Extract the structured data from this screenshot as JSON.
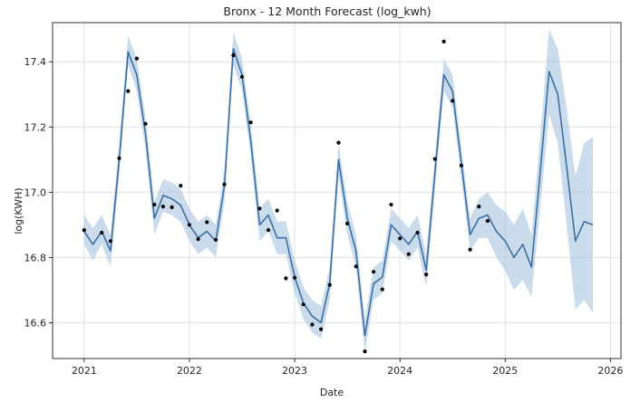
{
  "chart_data": {
    "type": "line",
    "title": "Bronx - 12 Month Forecast (log_kwh)",
    "xlabel": "Date",
    "ylabel": "log(KWH)",
    "x_ticks": [
      2021,
      2022,
      2023,
      2024,
      2025,
      2026
    ],
    "x_ticks_labels": [
      "2021",
      "2022",
      "2023",
      "2024",
      "2025",
      "2026"
    ],
    "y_ticks": [
      16.6,
      16.8,
      17.0,
      17.2,
      17.4
    ],
    "y_ticks_labels": [
      "16.6",
      "16.8",
      "17.0",
      "17.2",
      "17.4"
    ],
    "xlim": [
      2020.7,
      2026.1
    ],
    "ylim": [
      16.49,
      17.52
    ],
    "grid": true,
    "colors": {
      "forecast_line": "#3a6ea5",
      "uncertainty_band": "#9fbfdd",
      "actual_points": "#000000",
      "grid": "#e0e0e0"
    },
    "series": [
      {
        "name": "actual",
        "style": "points",
        "points": [
          {
            "x": 2021.0,
            "y": 16.884
          },
          {
            "x": 2021.167,
            "y": 16.876
          },
          {
            "x": 2021.25,
            "y": 16.85
          },
          {
            "x": 2021.333,
            "y": 17.104
          },
          {
            "x": 2021.417,
            "y": 17.31
          },
          {
            "x": 2021.5,
            "y": 17.41
          },
          {
            "x": 2021.583,
            "y": 17.21
          },
          {
            "x": 2021.667,
            "y": 16.962
          },
          {
            "x": 2021.75,
            "y": 16.956
          },
          {
            "x": 2021.833,
            "y": 16.954
          },
          {
            "x": 2021.917,
            "y": 17.02
          },
          {
            "x": 2022.0,
            "y": 16.9
          },
          {
            "x": 2022.083,
            "y": 16.856
          },
          {
            "x": 2022.167,
            "y": 16.908
          },
          {
            "x": 2022.25,
            "y": 16.854
          },
          {
            "x": 2022.333,
            "y": 17.024
          },
          {
            "x": 2022.417,
            "y": 17.42
          },
          {
            "x": 2022.5,
            "y": 17.354
          },
          {
            "x": 2022.583,
            "y": 17.214
          },
          {
            "x": 2022.667,
            "y": 16.95
          },
          {
            "x": 2022.75,
            "y": 16.884
          },
          {
            "x": 2022.833,
            "y": 16.944
          },
          {
            "x": 2022.917,
            "y": 16.736
          },
          {
            "x": 2023.0,
            "y": 16.738
          },
          {
            "x": 2023.083,
            "y": 16.656
          },
          {
            "x": 2023.167,
            "y": 16.594
          },
          {
            "x": 2023.25,
            "y": 16.58
          },
          {
            "x": 2023.333,
            "y": 16.716
          },
          {
            "x": 2023.417,
            "y": 17.152
          },
          {
            "x": 2023.5,
            "y": 16.904
          },
          {
            "x": 2023.583,
            "y": 16.772
          },
          {
            "x": 2023.667,
            "y": 16.512
          },
          {
            "x": 2023.75,
            "y": 16.756
          },
          {
            "x": 2023.833,
            "y": 16.702
          },
          {
            "x": 2023.917,
            "y": 16.962
          },
          {
            "x": 2024.0,
            "y": 16.858
          },
          {
            "x": 2024.083,
            "y": 16.81
          },
          {
            "x": 2024.167,
            "y": 16.876
          },
          {
            "x": 2024.25,
            "y": 16.748
          },
          {
            "x": 2024.333,
            "y": 17.102
          },
          {
            "x": 2024.417,
            "y": 17.462
          },
          {
            "x": 2024.5,
            "y": 17.28
          },
          {
            "x": 2024.583,
            "y": 17.082
          },
          {
            "x": 2024.667,
            "y": 16.824
          },
          {
            "x": 2024.75,
            "y": 16.956
          },
          {
            "x": 2024.833,
            "y": 16.912
          }
        ]
      },
      {
        "name": "forecast",
        "style": "line",
        "points": [
          {
            "x": 2021.0,
            "y": 16.88
          },
          {
            "x": 2021.083,
            "y": 16.84
          },
          {
            "x": 2021.167,
            "y": 16.88
          },
          {
            "x": 2021.25,
            "y": 16.82
          },
          {
            "x": 2021.333,
            "y": 17.1
          },
          {
            "x": 2021.417,
            "y": 17.43
          },
          {
            "x": 2021.5,
            "y": 17.36
          },
          {
            "x": 2021.583,
            "y": 17.18
          },
          {
            "x": 2021.667,
            "y": 16.92
          },
          {
            "x": 2021.75,
            "y": 16.99
          },
          {
            "x": 2021.833,
            "y": 16.98
          },
          {
            "x": 2021.917,
            "y": 16.96
          },
          {
            "x": 2022.0,
            "y": 16.9
          },
          {
            "x": 2022.083,
            "y": 16.86
          },
          {
            "x": 2022.167,
            "y": 16.88
          },
          {
            "x": 2022.25,
            "y": 16.85
          },
          {
            "x": 2022.333,
            "y": 17.02
          },
          {
            "x": 2022.417,
            "y": 17.44
          },
          {
            "x": 2022.5,
            "y": 17.36
          },
          {
            "x": 2022.583,
            "y": 17.16
          },
          {
            "x": 2022.667,
            "y": 16.9
          },
          {
            "x": 2022.75,
            "y": 16.93
          },
          {
            "x": 2022.833,
            "y": 16.86
          },
          {
            "x": 2022.917,
            "y": 16.86
          },
          {
            "x": 2023.0,
            "y": 16.74
          },
          {
            "x": 2023.083,
            "y": 16.66
          },
          {
            "x": 2023.167,
            "y": 16.62
          },
          {
            "x": 2023.25,
            "y": 16.6
          },
          {
            "x": 2023.333,
            "y": 16.72
          },
          {
            "x": 2023.417,
            "y": 17.1
          },
          {
            "x": 2023.5,
            "y": 16.92
          },
          {
            "x": 2023.583,
            "y": 16.82
          },
          {
            "x": 2023.667,
            "y": 16.56
          },
          {
            "x": 2023.75,
            "y": 16.72
          },
          {
            "x": 2023.833,
            "y": 16.74
          },
          {
            "x": 2023.917,
            "y": 16.9
          },
          {
            "x": 2024.0,
            "y": 16.87
          },
          {
            "x": 2024.083,
            "y": 16.84
          },
          {
            "x": 2024.167,
            "y": 16.88
          },
          {
            "x": 2024.25,
            "y": 16.76
          },
          {
            "x": 2024.333,
            "y": 17.06
          },
          {
            "x": 2024.417,
            "y": 17.36
          },
          {
            "x": 2024.5,
            "y": 17.31
          },
          {
            "x": 2024.583,
            "y": 17.09
          },
          {
            "x": 2024.667,
            "y": 16.87
          },
          {
            "x": 2024.75,
            "y": 16.92
          },
          {
            "x": 2024.833,
            "y": 16.93
          },
          {
            "x": 2024.917,
            "y": 16.88
          },
          {
            "x": 2025.0,
            "y": 16.85
          },
          {
            "x": 2025.083,
            "y": 16.8
          },
          {
            "x": 2025.167,
            "y": 16.84
          },
          {
            "x": 2025.25,
            "y": 16.77
          },
          {
            "x": 2025.333,
            "y": 17.06
          },
          {
            "x": 2025.417,
            "y": 17.37
          },
          {
            "x": 2025.5,
            "y": 17.3
          },
          {
            "x": 2025.583,
            "y": 17.08
          },
          {
            "x": 2025.667,
            "y": 16.85
          },
          {
            "x": 2025.75,
            "y": 16.91
          },
          {
            "x": 2025.833,
            "y": 16.9
          }
        ]
      },
      {
        "name": "uncertainty",
        "style": "band",
        "lower": [
          16.84,
          16.79,
          16.84,
          16.77,
          17.05,
          17.39,
          17.31,
          17.13,
          16.87,
          16.94,
          16.93,
          16.91,
          16.85,
          16.81,
          16.83,
          16.8,
          16.97,
          17.39,
          17.31,
          17.11,
          16.85,
          16.88,
          16.81,
          16.81,
          16.69,
          16.61,
          16.57,
          16.55,
          16.67,
          17.05,
          16.87,
          16.77,
          16.51,
          16.67,
          16.69,
          16.85,
          16.82,
          16.79,
          16.83,
          16.71,
          17.01,
          17.31,
          17.26,
          17.04,
          16.82,
          16.86,
          16.86,
          16.8,
          16.76,
          16.7,
          16.73,
          16.68,
          16.95,
          17.24,
          17.15,
          16.9,
          16.64,
          16.67,
          16.63
        ],
        "upper": [
          16.93,
          16.89,
          16.93,
          16.87,
          17.15,
          17.48,
          17.41,
          17.23,
          16.97,
          17.04,
          17.03,
          17.01,
          16.95,
          16.91,
          16.93,
          16.9,
          17.07,
          17.49,
          17.41,
          17.21,
          16.95,
          16.98,
          16.91,
          16.91,
          16.79,
          16.71,
          16.67,
          16.65,
          16.77,
          17.15,
          16.97,
          16.87,
          16.61,
          16.77,
          16.79,
          16.95,
          16.92,
          16.89,
          16.93,
          16.81,
          17.11,
          17.41,
          17.36,
          17.14,
          16.92,
          16.98,
          17.0,
          16.96,
          16.94,
          16.9,
          16.95,
          16.87,
          17.17,
          17.5,
          17.44,
          17.26,
          17.05,
          17.15,
          17.17
        ]
      }
    ]
  }
}
